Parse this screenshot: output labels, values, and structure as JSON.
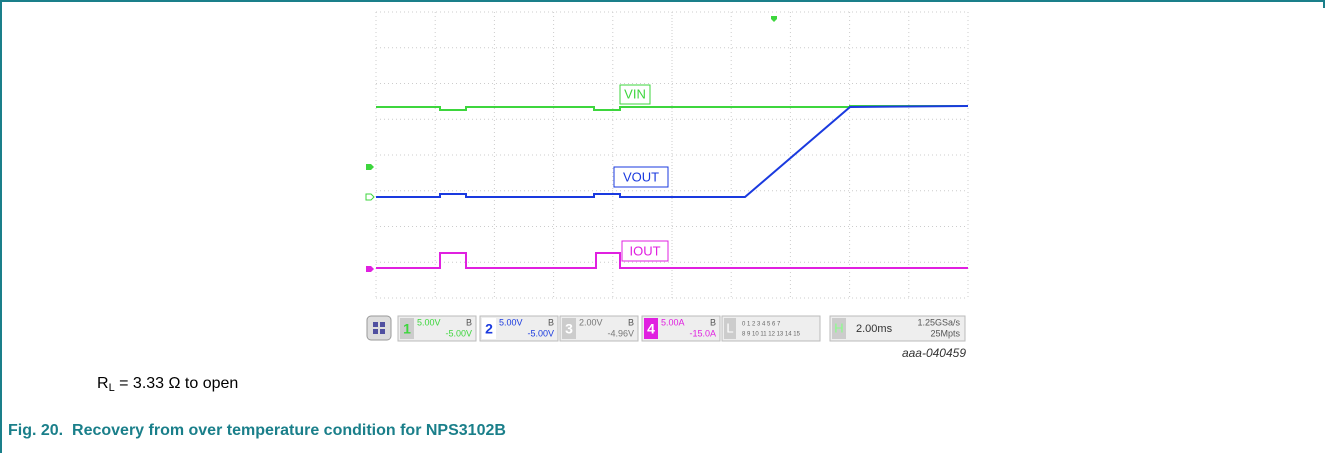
{
  "scope": {
    "traces": [
      "VIN",
      "VOUT",
      "IOUT"
    ],
    "channels": [
      {
        "number": "1",
        "scale": "5.00V",
        "bw": "B",
        "offset": "-5.00V"
      },
      {
        "number": "2",
        "scale": "5.00V",
        "bw": "B",
        "offset": "-5.00V"
      },
      {
        "number": "3",
        "scale": "2.00V",
        "bw": "B",
        "offset": "-4.96V"
      },
      {
        "number": "4",
        "scale": "5.00A",
        "bw": "B",
        "offset": "-15.0A"
      }
    ],
    "logic": {
      "label": "L",
      "row1": "0 1 2 3 4 5 6 7",
      "row2": "8 9 10 11 12 13 14 15"
    },
    "timebase": {
      "label": "H",
      "scale": "2.00ms",
      "rate": "1.25GSa/s",
      "points": "25Mpts"
    }
  },
  "figure_id": "aaa-040459",
  "condition": {
    "symbol": "R",
    "subscript": "L",
    "text": " = 3.33 Ω to open"
  },
  "caption": "Fig. 20.  Recovery from over temperature condition for NPS3102B"
}
